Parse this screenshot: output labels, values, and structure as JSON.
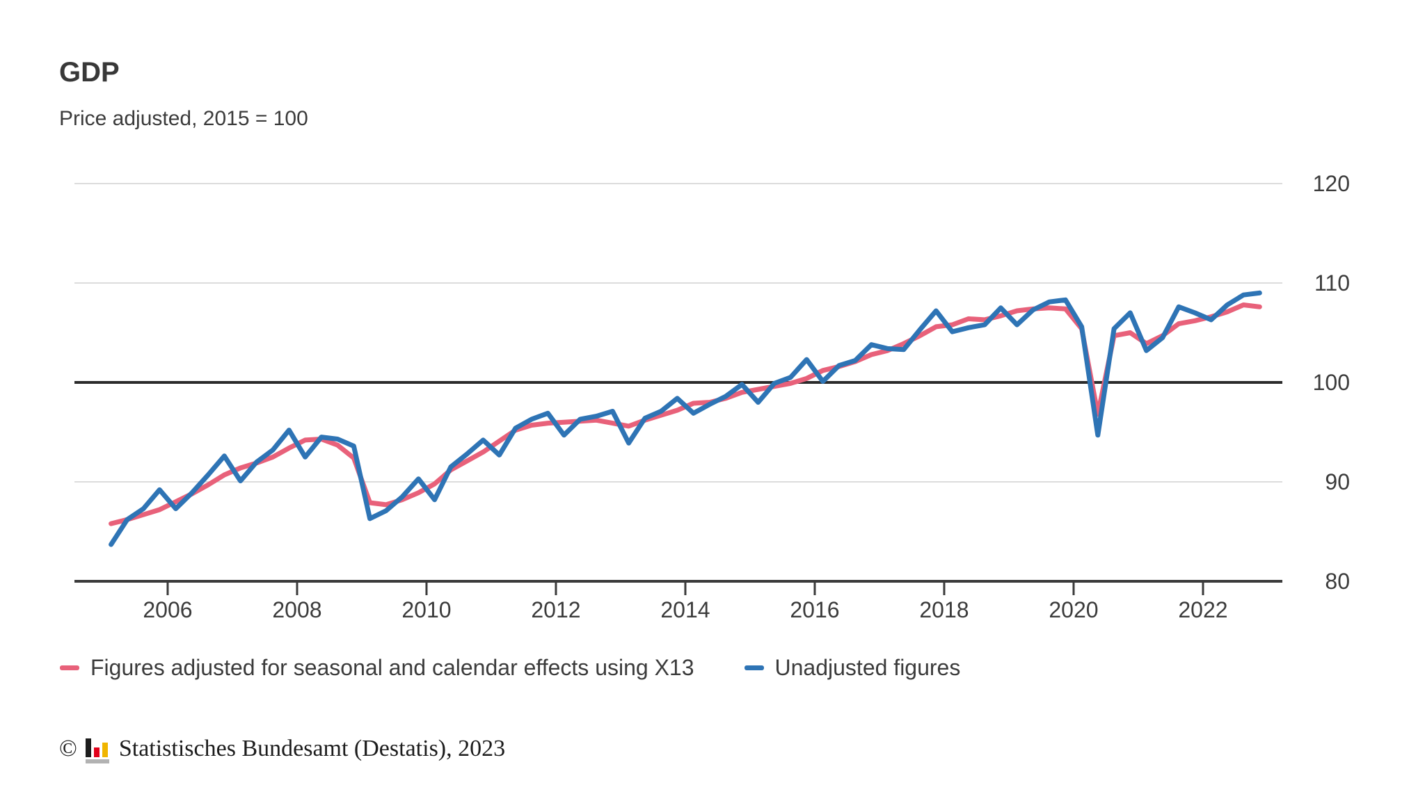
{
  "header": {
    "title": "GDP",
    "subtitle": "Price adjusted, 2015 = 100"
  },
  "colors": {
    "adjusted_series": "#e8617a",
    "unadjusted_series": "#2e74b5",
    "gridline": "#dcdcdc",
    "baseline_100": "#2b2b2b",
    "axis": "#3b3b3b",
    "text": "#3b3b3b",
    "footer_text": "#1c1c1c",
    "logo_black": "#1d1d1d",
    "logo_red": "#e2001a",
    "logo_gold": "#f0b500",
    "logo_base_gray": "#b2b2b2"
  },
  "legend": {
    "items": [
      {
        "label": "Figures adjusted for seasonal and calendar effects using X13",
        "series": "adjusted_series"
      },
      {
        "label": "Unadjusted figures",
        "series": "unadjusted_series"
      }
    ]
  },
  "footer": {
    "copyright_symbol": "©",
    "logo_name": "destatis-bar-chart-logo",
    "text": "Statistisches Bundesamt (Destatis), 2023"
  },
  "chart_data": {
    "type": "line",
    "title": "GDP",
    "subtitle": "Price adjusted, 2015 = 100",
    "grid": "horizontal-only",
    "legend_position": "bottom",
    "ylim": [
      80,
      120
    ],
    "y_ticks": [
      120,
      110,
      100,
      90,
      80
    ],
    "y_tick_side": "right",
    "baseline_value": 100,
    "x_tick_labels": [
      "2006",
      "2008",
      "2010",
      "2012",
      "2014",
      "2016",
      "2018",
      "2020",
      "2022"
    ],
    "x_frequency": "quarterly",
    "x": [
      "2005-Q1",
      "2005-Q2",
      "2005-Q3",
      "2005-Q4",
      "2006-Q1",
      "2006-Q2",
      "2006-Q3",
      "2006-Q4",
      "2007-Q1",
      "2007-Q2",
      "2007-Q3",
      "2007-Q4",
      "2008-Q1",
      "2008-Q2",
      "2008-Q3",
      "2008-Q4",
      "2009-Q1",
      "2009-Q2",
      "2009-Q3",
      "2009-Q4",
      "2010-Q1",
      "2010-Q2",
      "2010-Q3",
      "2010-Q4",
      "2011-Q1",
      "2011-Q2",
      "2011-Q3",
      "2011-Q4",
      "2012-Q1",
      "2012-Q2",
      "2012-Q3",
      "2012-Q4",
      "2013-Q1",
      "2013-Q2",
      "2013-Q3",
      "2013-Q4",
      "2014-Q1",
      "2014-Q2",
      "2014-Q3",
      "2014-Q4",
      "2015-Q1",
      "2015-Q2",
      "2015-Q3",
      "2015-Q4",
      "2016-Q1",
      "2016-Q2",
      "2016-Q3",
      "2016-Q4",
      "2017-Q1",
      "2017-Q2",
      "2017-Q3",
      "2017-Q4",
      "2018-Q1",
      "2018-Q2",
      "2018-Q3",
      "2018-Q4",
      "2019-Q1",
      "2019-Q2",
      "2019-Q3",
      "2019-Q4",
      "2020-Q1",
      "2020-Q2",
      "2020-Q3",
      "2020-Q4",
      "2021-Q1",
      "2021-Q2",
      "2021-Q3",
      "2021-Q4",
      "2022-Q1",
      "2022-Q2",
      "2022-Q3",
      "2022-Q4"
    ],
    "series": [
      {
        "name": "Figures adjusted for seasonal and calendar effects using X13",
        "key": "adjusted_series",
        "values": [
          85.8,
          86.2,
          86.7,
          87.2,
          88.0,
          88.8,
          89.7,
          90.7,
          91.4,
          91.9,
          92.5,
          93.4,
          94.2,
          94.3,
          93.7,
          92.4,
          87.9,
          87.7,
          88.2,
          88.9,
          89.8,
          91.2,
          92.1,
          93.0,
          94.1,
          95.2,
          95.7,
          95.9,
          96.0,
          96.1,
          96.2,
          95.9,
          95.6,
          96.2,
          96.7,
          97.2,
          97.9,
          98.0,
          98.4,
          99.0,
          99.3,
          99.6,
          99.9,
          100.4,
          101.2,
          101.6,
          102.1,
          102.8,
          103.2,
          103.9,
          104.7,
          105.6,
          105.8,
          106.4,
          106.3,
          106.7,
          107.2,
          107.4,
          107.5,
          107.4,
          105.4,
          96.8,
          104.7,
          105.0,
          103.9,
          104.7,
          105.9,
          106.2,
          106.6,
          107.1,
          107.8,
          107.6
        ]
      },
      {
        "name": "Unadjusted figures",
        "key": "unadjusted_series",
        "values": [
          83.7,
          86.2,
          87.3,
          89.2,
          87.3,
          88.9,
          90.7,
          92.6,
          90.1,
          92.0,
          93.2,
          95.2,
          92.5,
          94.5,
          94.3,
          93.6,
          86.3,
          87.1,
          88.5,
          90.3,
          88.2,
          91.5,
          92.8,
          94.2,
          92.7,
          95.4,
          96.3,
          96.9,
          94.7,
          96.3,
          96.6,
          97.1,
          93.9,
          96.4,
          97.1,
          98.4,
          96.9,
          97.8,
          98.6,
          99.8,
          98.0,
          99.9,
          100.5,
          102.3,
          100.1,
          101.7,
          102.2,
          103.8,
          103.4,
          103.3,
          105.3,
          107.2,
          105.1,
          105.5,
          105.8,
          107.5,
          105.8,
          107.3,
          108.1,
          108.3,
          105.6,
          94.7,
          105.4,
          107.0,
          103.2,
          104.5,
          107.6,
          107.0,
          106.3,
          107.8,
          108.8,
          109.0
        ]
      }
    ]
  }
}
